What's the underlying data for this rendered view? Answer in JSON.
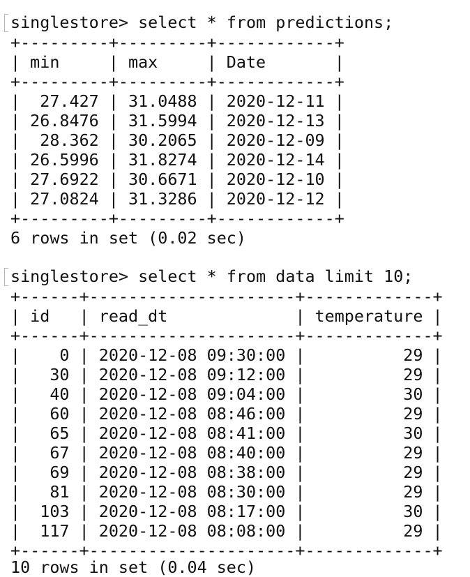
{
  "terminal": {
    "query1": {
      "prompt": "singlestore> ",
      "command": "select * from predictions;",
      "border": "+---------+---------+------------+",
      "header": "| min     | max     | Date       |",
      "rows": [
        "|  27.427 | 31.0488 | 2020-12-11 |",
        "| 26.8476 | 31.5994 | 2020-12-13 |",
        "|  28.362 | 30.2065 | 2020-12-09 |",
        "| 26.5996 | 31.8274 | 2020-12-14 |",
        "| 27.6922 | 30.6671 | 2020-12-10 |",
        "| 27.0824 | 31.3286 | 2020-12-12 |"
      ],
      "footer": "6 rows in set (0.02 sec)"
    },
    "query2": {
      "prompt": "singlestore> ",
      "command": "select * from data limit 10;",
      "border": "+------+---------------------+-------------+",
      "header": "| id   | read_dt             | temperature |",
      "rows": [
        "|    0 | 2020-12-08 09:30:00 |          29 |",
        "|   30 | 2020-12-08 09:12:00 |          29 |",
        "|   40 | 2020-12-08 09:04:00 |          30 |",
        "|   60 | 2020-12-08 08:46:00 |          29 |",
        "|   65 | 2020-12-08 08:41:00 |          30 |",
        "|   67 | 2020-12-08 08:40:00 |          29 |",
        "|   69 | 2020-12-08 08:38:00 |          29 |",
        "|   81 | 2020-12-08 08:30:00 |          29 |",
        "|  103 | 2020-12-08 08:17:00 |          30 |",
        "|  117 | 2020-12-08 08:08:00 |          29 |"
      ],
      "footer": "10 rows in set (0.04 sec)"
    }
  }
}
